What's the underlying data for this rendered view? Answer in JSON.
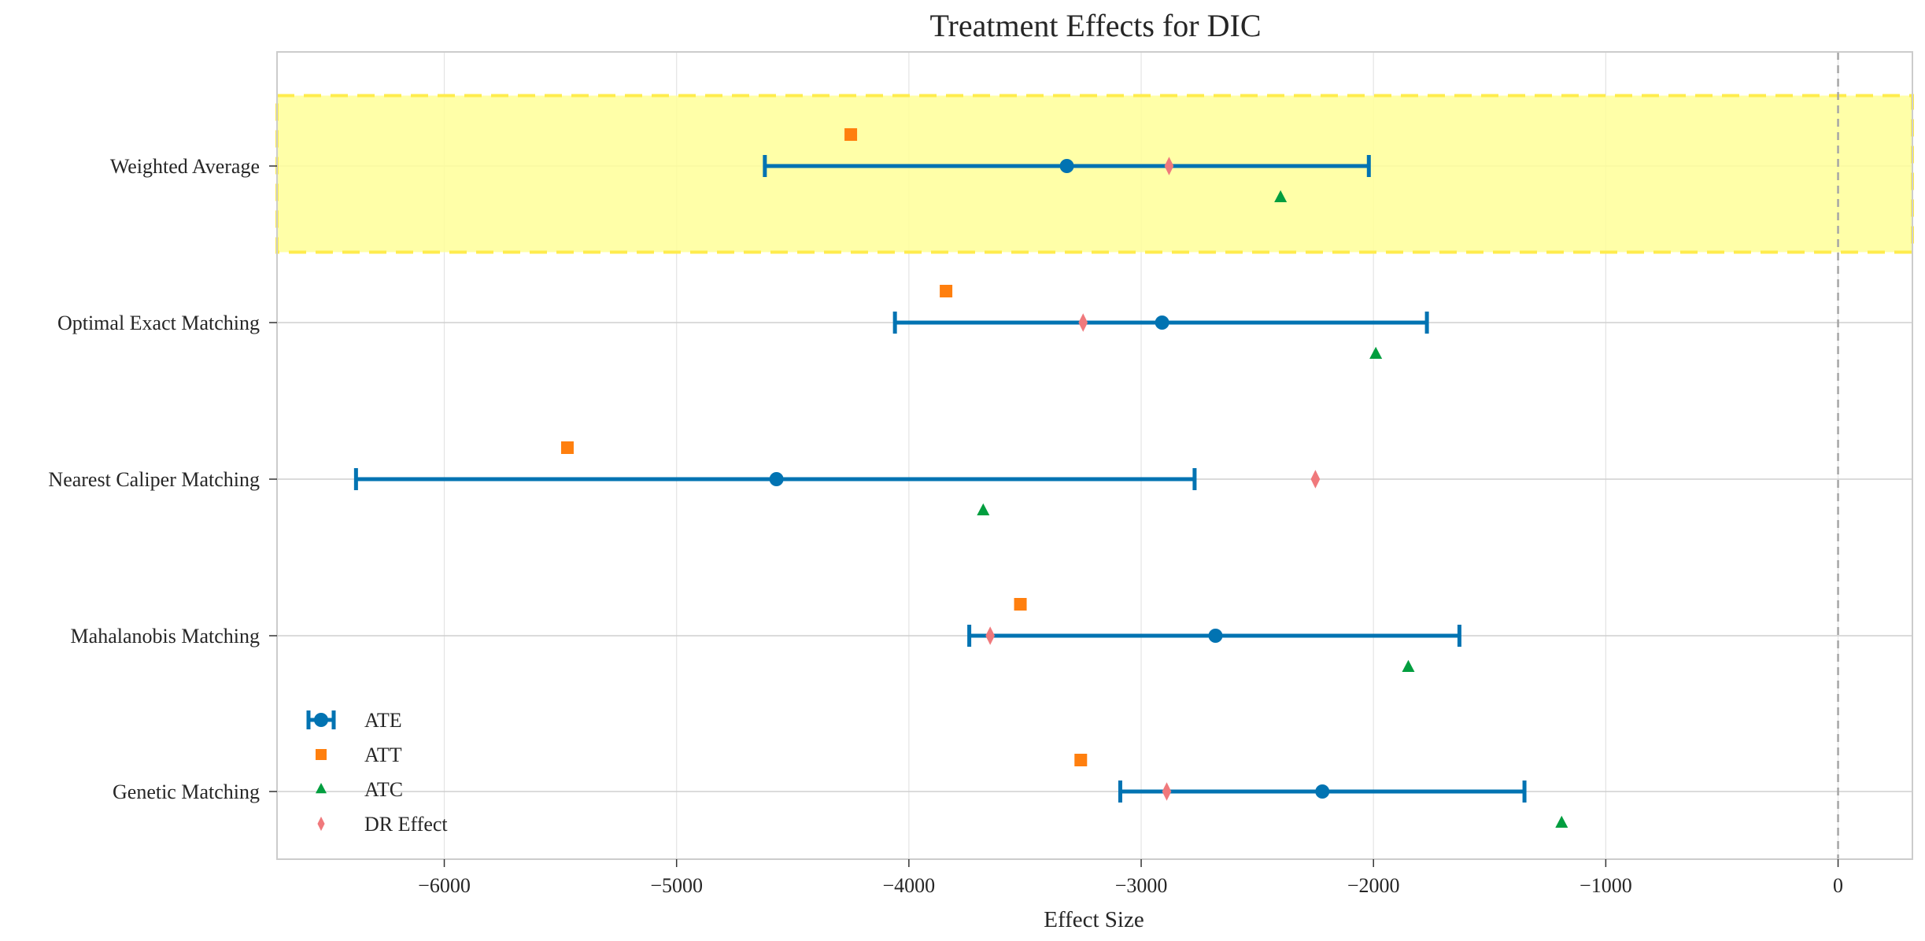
{
  "chart_data": {
    "type": "scatter",
    "title": "Treatment Effects for DIC",
    "xlabel": "Effect Size",
    "ylabel": "",
    "xlim": [
      -6720,
      320
    ],
    "x_ticks": [
      -6000,
      -5000,
      -4000,
      -3000,
      -2000,
      -1000,
      0
    ],
    "x_tick_labels": [
      "−6000",
      "−5000",
      "−4000",
      "−3000",
      "−2000",
      "−1000",
      "0"
    ],
    "categories": [
      "Weighted Average",
      "Optimal Exact Matching",
      "Nearest Caliper Matching",
      "Mahalanobis Matching",
      "Genetic Matching"
    ],
    "highlighted_category": "Weighted Average",
    "reference_line_x": 0,
    "grid": true,
    "legend_position": "lower-left",
    "series": [
      {
        "name": "ATE",
        "marker": "circle",
        "color": "#0173b2",
        "values": [
          -3320,
          -2910,
          -4570,
          -2680,
          -2220
        ],
        "ci_low": [
          -4620,
          -4060,
          -6380,
          -3740,
          -3090
        ],
        "ci_high": [
          -2020,
          -1770,
          -2770,
          -1630,
          -1350
        ]
      },
      {
        "name": "ATT",
        "marker": "square",
        "color": "#ff7f0e",
        "values": [
          -4250,
          -3840,
          -5470,
          -3520,
          -3260
        ]
      },
      {
        "name": "ATC",
        "marker": "triangle",
        "color": "#029e3f",
        "values": [
          -2400,
          -1990,
          -3680,
          -1850,
          -1190
        ]
      },
      {
        "name": "DR Effect",
        "marker": "diamond",
        "color": "#f0797c",
        "values": [
          -2880,
          -3250,
          -2250,
          -3650,
          -2890
        ]
      }
    ]
  },
  "colors": {
    "highlight_fill": "#ffff99",
    "highlight_border": "#ffec4d",
    "grid": "#e4e4e4",
    "row_line": "#cfcfcf",
    "reference_line": "#a6a6a6",
    "frame": "#cccccc"
  }
}
